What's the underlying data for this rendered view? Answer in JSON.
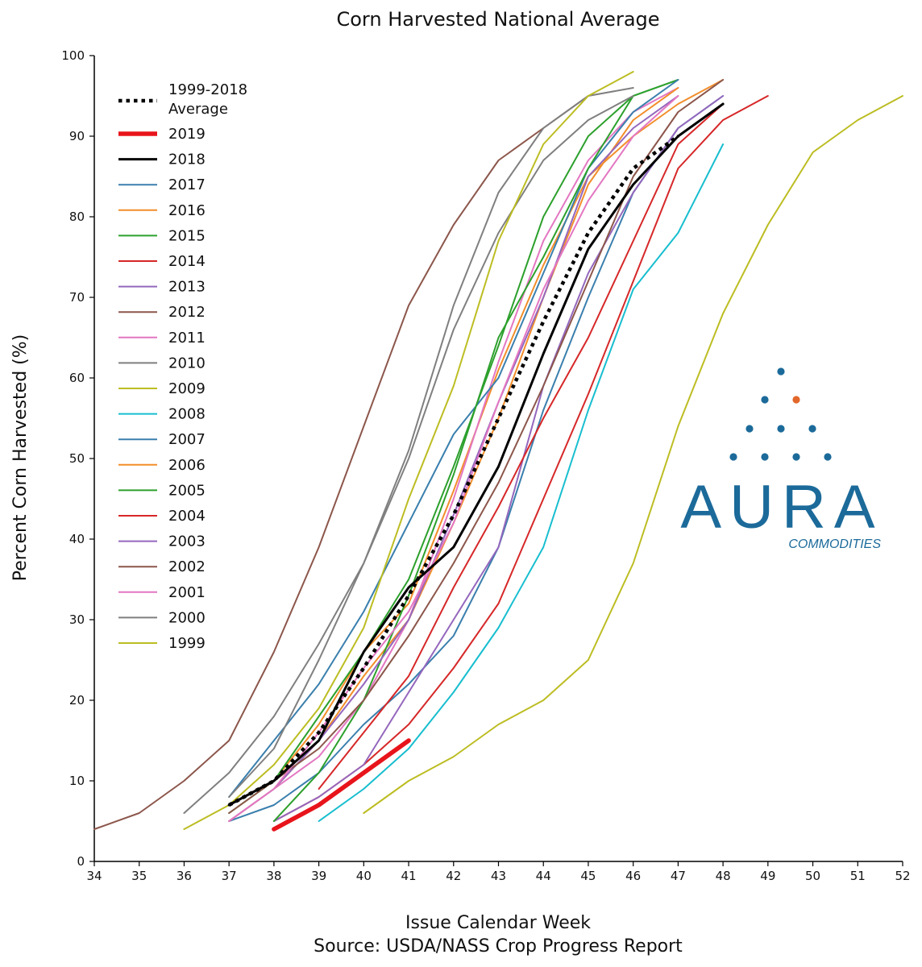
{
  "chart_data": {
    "type": "line",
    "title": "Corn Harvested National Average",
    "xlabel": "Issue Calendar Week",
    "source": "Source: USDA/NASS Crop Progress Report",
    "ylabel": "Percent Corn Harvested (%)",
    "xlim": [
      34,
      52
    ],
    "ylim": [
      0,
      100
    ],
    "x_ticks": [
      34,
      35,
      36,
      37,
      38,
      39,
      40,
      41,
      42,
      43,
      44,
      45,
      46,
      47,
      48,
      49,
      50,
      51,
      52
    ],
    "y_ticks": [
      0,
      10,
      20,
      30,
      40,
      50,
      60,
      70,
      80,
      90,
      100
    ],
    "grid": false,
    "legend_position": "top-left",
    "series": [
      {
        "name": "1999-2018 Average",
        "color": "#000000",
        "style": "dotted",
        "x": [
          37,
          38,
          39,
          40,
          41,
          42,
          43,
          44,
          45,
          46,
          47
        ],
        "y": [
          7,
          10,
          16,
          24,
          33,
          43,
          55,
          67,
          78,
          86,
          90
        ]
      },
      {
        "name": "2019",
        "color": "#e8141b",
        "style": "thick",
        "x": [
          38,
          39,
          40,
          41
        ],
        "y": [
          4,
          7,
          11,
          15
        ]
      },
      {
        "name": "2018",
        "color": "#000000",
        "style": "solid",
        "x": [
          37,
          38,
          39,
          40,
          41,
          42,
          43,
          44,
          45,
          46,
          47,
          48
        ],
        "y": [
          7,
          10,
          15,
          26,
          34,
          39,
          49,
          63,
          76,
          84,
          90,
          94
        ]
      },
      {
        "name": "2017",
        "color": "#3a7fad",
        "style": "solid",
        "x": [
          37,
          38,
          39,
          40,
          41,
          42,
          43,
          44,
          45,
          46,
          47,
          48
        ],
        "y": [
          5,
          7,
          11,
          17,
          22,
          28,
          39,
          56,
          70,
          83,
          91,
          95
        ]
      },
      {
        "name": "2016",
        "color": "#f28e2b",
        "style": "solid",
        "x": [
          37,
          38,
          39,
          40,
          41,
          42,
          43,
          44,
          45,
          46,
          47,
          48
        ],
        "y": [
          6,
          10,
          17,
          26,
          32,
          46,
          61,
          74,
          85,
          90,
          94,
          97
        ]
      },
      {
        "name": "2015",
        "color": "#2ca02c",
        "style": "solid",
        "x": [
          37,
          38,
          39,
          40,
          41,
          42,
          43,
          44,
          45,
          46,
          47
        ],
        "y": [
          6,
          10,
          18,
          26,
          35,
          49,
          64,
          80,
          90,
          95,
          97
        ]
      },
      {
        "name": "2014",
        "color": "#d62728",
        "style": "solid",
        "x": [
          38,
          39,
          40,
          41,
          42,
          43,
          44,
          45,
          46,
          47,
          48,
          49
        ],
        "y": [
          5,
          8,
          12,
          17,
          24,
          32,
          45,
          58,
          72,
          86,
          92,
          95
        ]
      },
      {
        "name": "2013",
        "color": "#9467bd",
        "style": "solid",
        "x": [
          38,
          39,
          40,
          41,
          42,
          43,
          44,
          45,
          46,
          47,
          48
        ],
        "y": [
          5,
          8,
          12,
          21,
          30,
          39,
          59,
          73,
          83,
          91,
          95
        ]
      },
      {
        "name": "2012",
        "color": "#8c564b",
        "style": "solid",
        "x": [
          34,
          35,
          36,
          37,
          38,
          39,
          40,
          41,
          42,
          43,
          44,
          45
        ],
        "y": [
          4,
          6,
          10,
          15,
          26,
          39,
          54,
          69,
          79,
          87,
          91,
          95
        ]
      },
      {
        "name": "2011",
        "color": "#e377c2",
        "style": "solid",
        "x": [
          37,
          38,
          39,
          40,
          41,
          42,
          43,
          44,
          45,
          46,
          47
        ],
        "y": [
          5,
          9,
          13,
          20,
          30,
          45,
          62,
          77,
          87,
          93,
          96
        ]
      },
      {
        "name": "2010",
        "color": "#7f7f7f",
        "style": "solid",
        "x": [
          36,
          37,
          38,
          39,
          40,
          41,
          42,
          43,
          44,
          45,
          46
        ],
        "y": [
          6,
          11,
          18,
          27,
          37,
          51,
          69,
          83,
          91,
          95,
          96
        ]
      },
      {
        "name": "2009",
        "color": "#bcbd22",
        "style": "solid",
        "x": [
          40,
          41,
          42,
          43,
          44,
          45,
          46,
          47,
          48,
          49,
          50,
          51,
          52
        ],
        "y": [
          6,
          10,
          13,
          17,
          20,
          25,
          37,
          54,
          68,
          79,
          88,
          92,
          95
        ]
      },
      {
        "name": "2008",
        "color": "#17becf",
        "style": "solid",
        "x": [
          39,
          40,
          41,
          42,
          43,
          44,
          45,
          46,
          47,
          48
        ],
        "y": [
          5,
          9,
          14,
          21,
          29,
          39,
          56,
          71,
          78,
          89
        ]
      },
      {
        "name": "2007",
        "color": "#3a7fad",
        "style": "solid",
        "x": [
          37,
          38,
          39,
          40,
          41,
          42,
          43,
          44,
          45,
          46,
          47
        ],
        "y": [
          8,
          15,
          22,
          31,
          42,
          53,
          60,
          73,
          86,
          93,
          97
        ]
      },
      {
        "name": "2006",
        "color": "#f28e2b",
        "style": "solid",
        "x": [
          37,
          38,
          39,
          40,
          41,
          42,
          43,
          44,
          45,
          46,
          47
        ],
        "y": [
          5,
          9,
          15,
          23,
          30,
          42,
          55,
          70,
          84,
          92,
          96
        ]
      },
      {
        "name": "2005",
        "color": "#2ca02c",
        "style": "solid",
        "x": [
          38,
          39,
          40,
          41,
          42,
          43,
          44,
          45,
          46
        ],
        "y": [
          5,
          11,
          20,
          33,
          48,
          65,
          75,
          86,
          95
        ]
      },
      {
        "name": "2004",
        "color": "#d62728",
        "style": "solid",
        "x": [
          39,
          40,
          41,
          42,
          43,
          44,
          45,
          46,
          47,
          48
        ],
        "y": [
          9,
          16,
          23,
          34,
          44,
          55,
          65,
          77,
          89,
          94
        ]
      },
      {
        "name": "2003",
        "color": "#9467bd",
        "style": "solid",
        "x": [
          37,
          38,
          39,
          40,
          41,
          42,
          43,
          44,
          45,
          46,
          47
        ],
        "y": [
          5,
          9,
          15,
          22,
          30,
          43,
          57,
          70,
          85,
          91,
          95
        ]
      },
      {
        "name": "2002",
        "color": "#8c564b",
        "style": "solid",
        "x": [
          37,
          38,
          39,
          40,
          41,
          42,
          43,
          44,
          45,
          46,
          47,
          48
        ],
        "y": [
          6,
          10,
          14,
          20,
          28,
          37,
          47,
          59,
          72,
          85,
          93,
          97
        ]
      },
      {
        "name": "2001",
        "color": "#e377c2",
        "style": "solid",
        "x": [
          37,
          38,
          39,
          40,
          41,
          42,
          43,
          44,
          45,
          46,
          47
        ],
        "y": [
          5,
          9,
          16,
          24,
          31,
          42,
          57,
          71,
          82,
          90,
          95
        ]
      },
      {
        "name": "2000",
        "color": "#7f7f7f",
        "style": "solid",
        "x": [
          37,
          38,
          39,
          40,
          41,
          42,
          43,
          44,
          45,
          46
        ],
        "y": [
          8,
          14,
          25,
          37,
          50,
          66,
          78,
          87,
          92,
          95
        ]
      },
      {
        "name": "1999",
        "color": "#bcbd22",
        "style": "solid",
        "x": [
          36,
          37,
          38,
          39,
          40,
          41,
          42,
          43,
          44,
          45,
          46
        ],
        "y": [
          4,
          7,
          12,
          19,
          29,
          45,
          59,
          77,
          89,
          95,
          98
        ]
      }
    ]
  },
  "logo": {
    "word": "AURA",
    "subtitle": "COMMODITIES",
    "color": "#1b6a9a",
    "accent": "#e2672a"
  }
}
